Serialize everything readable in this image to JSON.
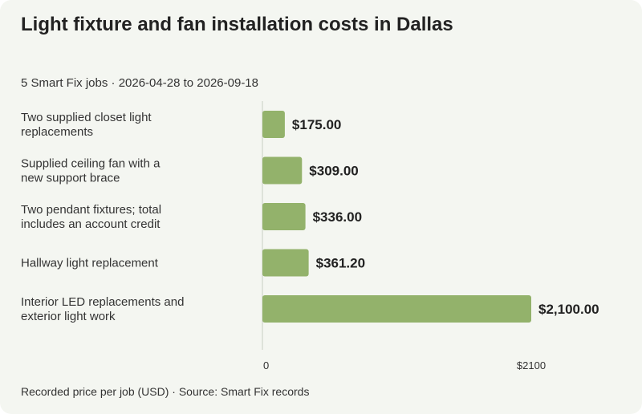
{
  "chart_data": {
    "type": "bar",
    "orientation": "horizontal",
    "title": "Light fixture and fan installation costs in Dallas",
    "subtitle": "5 Smart Fix jobs · 2026-04-28 to 2026-09-18",
    "footnote": "Recorded price per job (USD) · Source: Smart Fix records",
    "categories": [
      [
        "Two supplied closet light",
        "replacements"
      ],
      [
        "Supplied ceiling fan with a",
        "new support brace"
      ],
      [
        "Two pendant fixtures; total",
        "includes an account credit"
      ],
      [
        "Hallway light replacement"
      ],
      [
        "Interior LED replacements and",
        "exterior light work"
      ]
    ],
    "values": [
      175.0,
      309.0,
      336.0,
      361.2,
      2100.0
    ],
    "value_labels": [
      "$175.00",
      "$309.00",
      "$336.00",
      "$361.20",
      "$2,100.00"
    ],
    "xlim": [
      0,
      2100
    ],
    "x_ticks": [
      {
        "value": 0,
        "label": "0"
      },
      {
        "value": 2100,
        "label": "$2100"
      }
    ],
    "grid": false,
    "bar_color": "#93b26b"
  }
}
